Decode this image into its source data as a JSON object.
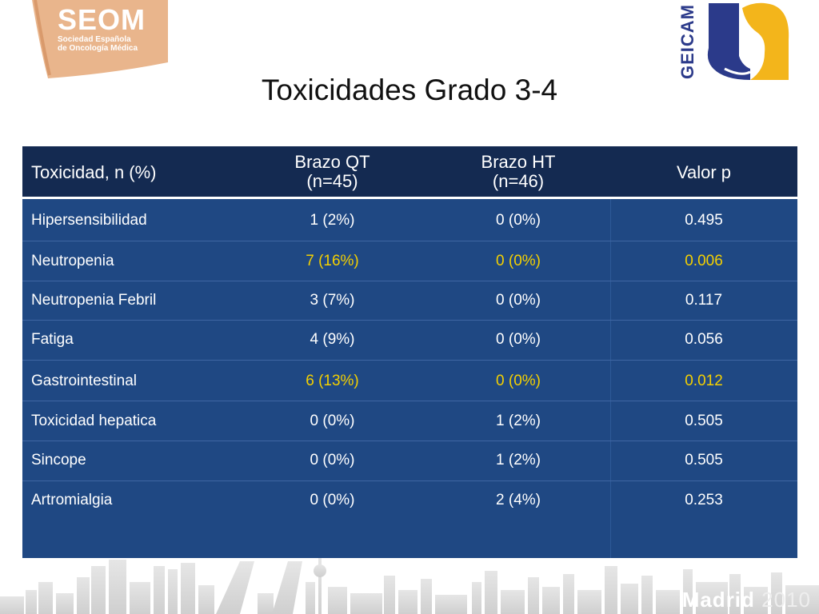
{
  "logos": {
    "seom": {
      "name": "SEOM",
      "line1": "Sociedad Española",
      "line2": "de Oncología Médica"
    },
    "geicam": {
      "name": "GEICAM"
    },
    "colors": {
      "seom_orange": "#e9b58c",
      "geicam_blue": "#2b3a8a",
      "geicam_yellow": "#f3b51b"
    }
  },
  "title": "Toxicidades Grado 3-4",
  "table": {
    "headers": {
      "col1": "Toxicidad, n (%)",
      "col2_line1": "Brazo QT",
      "col2_line2": "(n=45)",
      "col3_line1": "Brazo HT",
      "col3_line2": "(n=46)",
      "col4": "Valor p"
    },
    "rows": [
      {
        "label": "Hipersensibilidad",
        "qt": "1 (2%)",
        "ht": "0 (0%)",
        "p": "0.495",
        "highlight": false
      },
      {
        "label": "Neutropenia",
        "qt": "7 (16%)",
        "ht": "0 (0%)",
        "p": "0.006",
        "highlight": true
      },
      {
        "label": "Neutropenia Febril",
        "qt": "3 (7%)",
        "ht": "0 (0%)",
        "p": "0.117",
        "highlight": false
      },
      {
        "label": "Fatiga",
        "qt": "4 (9%)",
        "ht": "0 (0%)",
        "p": "0.056",
        "highlight": false
      },
      {
        "label": "Gastrointestinal",
        "qt": "6 (13%)",
        "ht": "0 (0%)",
        "p": "0.012",
        "highlight": true
      },
      {
        "label": "Toxicidad hepatica",
        "qt": "0 (0%)",
        "ht": "1 (2%)",
        "p": "0.505",
        "highlight": false
      },
      {
        "label": "Sincope",
        "qt": "0 (0%)",
        "ht": "1 (2%)",
        "p": "0.505",
        "highlight": false
      },
      {
        "label": "Artromialgia",
        "qt": "0 (0%)",
        "ht": "2 (4%)",
        "p": "0.253",
        "highlight": false
      }
    ],
    "colors": {
      "header_bg": "#142a51",
      "body_bg": "#1f4883",
      "highlight_text": "#f4d000"
    }
  },
  "footer": {
    "city": "Madrid",
    "year": "2010"
  }
}
